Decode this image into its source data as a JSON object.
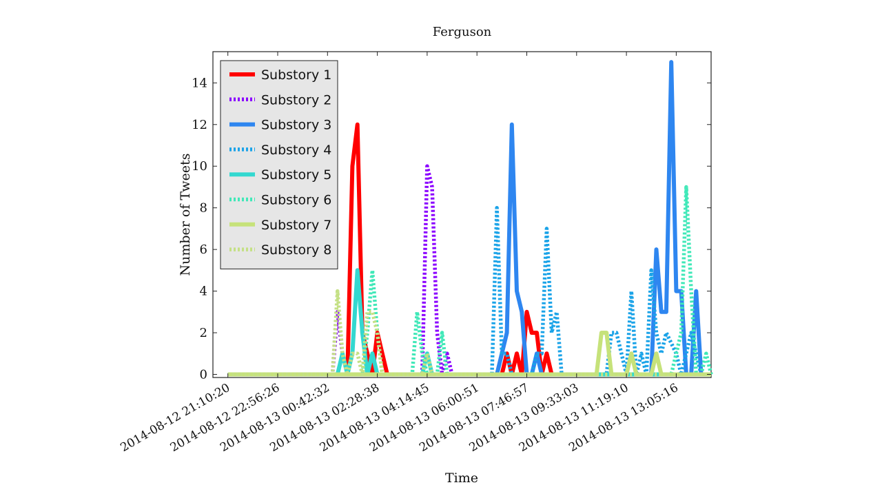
{
  "chart_data": {
    "type": "line",
    "title": "Ferguson",
    "xlabel": "Time",
    "ylabel": "Number of Tweets",
    "ylim": [
      -0.15,
      15.5
    ],
    "yticks": [
      0,
      2,
      4,
      6,
      8,
      10,
      12,
      14
    ],
    "xlim": [
      -0.3,
      9.7
    ],
    "xtick_labels": [
      "2014-08-12 21:10:20",
      "2014-08-12 22:56:26",
      "2014-08-13 00:42:32",
      "2014-08-13 02:28:38",
      "2014-08-13 04:14:45",
      "2014-08-13 06:00:51",
      "2014-08-13 07:46:57",
      "2014-08-13 09:33:03",
      "2014-08-13 11:19:10",
      "2014-08-13 13:05:16"
    ],
    "legend_position": "top-left",
    "series": [
      {
        "name": "Substory 1",
        "color": "#ff0000",
        "style": "solid",
        "x": [
          0,
          2.4,
          2.5,
          2.6,
          2.7,
          2.8,
          2.9,
          3.0,
          3.1,
          3.2,
          5.5,
          5.6,
          5.7,
          5.8,
          5.9,
          6.0,
          6.1,
          6.2,
          6.3,
          6.4,
          6.5,
          9.7
        ],
        "y": [
          0,
          0,
          10,
          12,
          2,
          1,
          0,
          2,
          1,
          0,
          0,
          1,
          0,
          1,
          0,
          3,
          2,
          2,
          0,
          1,
          0,
          0
        ]
      },
      {
        "name": "Substory 2",
        "color": "#8a00ff",
        "style": "dotted",
        "x": [
          0,
          2.1,
          2.2,
          2.3,
          2.4,
          2.5,
          3.9,
          4.0,
          4.1,
          4.2,
          4.3,
          4.4,
          4.5,
          9.7
        ],
        "y": [
          0,
          0,
          3,
          1,
          0,
          0,
          0,
          10,
          9,
          2,
          0,
          1,
          0,
          0
        ]
      },
      {
        "name": "Substory 3",
        "color": "#2e86f0",
        "style": "solid",
        "x": [
          0,
          5.4,
          5.5,
          5.6,
          5.7,
          5.8,
          5.9,
          6.0,
          6.1,
          6.2,
          6.3,
          6.4,
          8.5,
          8.6,
          8.7,
          8.8,
          8.9,
          9.0,
          9.1,
          9.2,
          9.3,
          9.4,
          9.5,
          9.6,
          9.7
        ],
        "y": [
          0,
          0,
          1,
          2,
          12,
          4,
          3,
          0,
          0,
          1,
          0,
          0,
          0,
          6,
          3,
          3,
          15,
          4,
          4,
          0,
          0,
          4,
          0,
          0,
          0
        ]
      },
      {
        "name": "Substory 4",
        "color": "#1aa3e8",
        "style": "dotted",
        "x": [
          0,
          5.3,
          5.4,
          5.5,
          5.6,
          5.7,
          6.1,
          6.2,
          6.3,
          6.4,
          6.5,
          6.6,
          6.7,
          7.5,
          7.6,
          7.7,
          7.8,
          7.9,
          8.0,
          8.1,
          8.2,
          8.3,
          8.4,
          8.5,
          8.6,
          8.7,
          8.8,
          9.0,
          9.1,
          9.2,
          9.3,
          9.4,
          9.5,
          9.7
        ],
        "y": [
          0,
          0,
          8,
          1,
          1,
          0,
          0,
          1,
          1,
          7,
          2,
          3,
          0,
          0,
          0,
          2,
          2,
          1,
          0,
          4,
          0,
          1,
          0,
          5,
          2,
          1,
          2,
          1,
          0,
          1,
          2,
          1,
          0,
          0
        ]
      },
      {
        "name": "Substory 5",
        "color": "#33d8d0",
        "style": "solid",
        "x": [
          0,
          2.2,
          2.3,
          2.4,
          2.5,
          2.6,
          2.7,
          2.8,
          2.9,
          3.0,
          3.1,
          3.9,
          4.0,
          4.1,
          9.7
        ],
        "y": [
          0,
          0,
          1,
          0,
          1,
          5,
          2,
          0,
          1,
          0,
          0,
          0,
          1,
          0,
          0
        ]
      },
      {
        "name": "Substory 6",
        "color": "#40e8b8",
        "style": "dotted",
        "x": [
          0,
          2.7,
          2.8,
          2.9,
          3.0,
          3.1,
          3.7,
          3.8,
          3.9,
          4.0,
          4.2,
          4.3,
          4.4,
          8.9,
          9.0,
          9.1,
          9.2,
          9.3,
          9.4,
          9.5,
          9.6,
          9.7
        ],
        "y": [
          0,
          0,
          2,
          5,
          2,
          0,
          0,
          3,
          1,
          0,
          0,
          2,
          0,
          0,
          1,
          2,
          9,
          4,
          0,
          0,
          1,
          0
        ]
      },
      {
        "name": "Substory 7",
        "color": "#c6e27a",
        "style": "solid",
        "x": [
          0,
          7.4,
          7.5,
          7.6,
          7.7,
          8.0,
          8.1,
          8.2,
          8.5,
          8.6,
          8.7,
          9.7
        ],
        "y": [
          0,
          0,
          2,
          2,
          0,
          0,
          1,
          0,
          0,
          1,
          0,
          0
        ]
      },
      {
        "name": "Substory 8",
        "color": "#c4e084",
        "style": "dotted",
        "x": [
          0,
          2.1,
          2.2,
          2.3,
          2.4,
          2.5,
          2.6,
          2.7,
          2.8,
          2.9,
          3.0,
          3.1,
          3.9,
          4.0,
          4.1,
          9.7
        ],
        "y": [
          0,
          0,
          4,
          1,
          0,
          1,
          1,
          0,
          3,
          3,
          2,
          0,
          0,
          1,
          0,
          0
        ]
      }
    ]
  }
}
